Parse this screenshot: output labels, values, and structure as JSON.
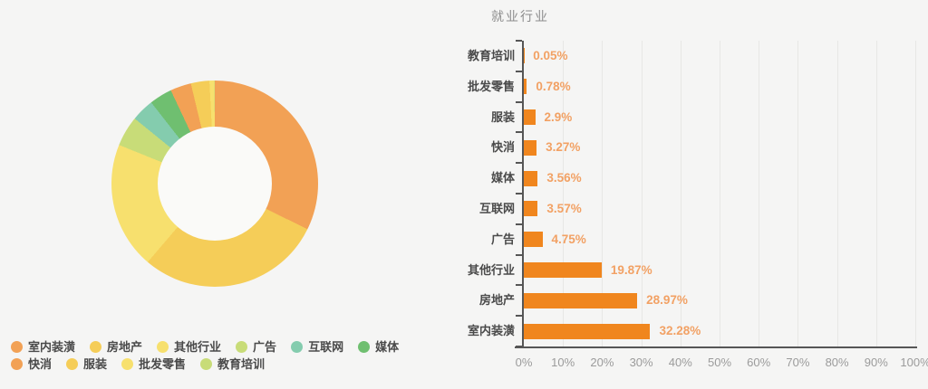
{
  "page": {
    "background_color": "#f5f5f4"
  },
  "chart_data": [
    {
      "type": "pie",
      "donut": true,
      "title": "",
      "start_angle": "top",
      "direction": "clockwise",
      "unit": "%",
      "labels": [
        "室内装潢",
        "房地产",
        "其他行业",
        "广告",
        "互联网",
        "媒体",
        "快消",
        "服装",
        "批发零售",
        "教育培训"
      ],
      "values": [
        32.28,
        28.97,
        19.87,
        4.75,
        3.57,
        3.56,
        3.27,
        2.9,
        0.78,
        0.05
      ],
      "colors": [
        "#f2a155",
        "#f5cd58",
        "#f7e06e",
        "#c8dc78",
        "#84ccae",
        "#6fbf70",
        "#f2a155",
        "#f5cd58",
        "#f7e06e",
        "#c8dc78"
      ],
      "legend_position": "bottom",
      "legend_rows": [
        [
          "室内装潢",
          "房地产",
          "其他行业",
          "广告",
          "互联网",
          "媒体"
        ],
        [
          "快消",
          "服装",
          "批发零售",
          "教育培训"
        ]
      ]
    },
    {
      "type": "bar",
      "orientation": "horizontal",
      "title": "就业行业",
      "categories": [
        "教育培训",
        "批发零售",
        "服装",
        "快消",
        "媒体",
        "互联网",
        "广告",
        "其他行业",
        "房地产",
        "室内装潢"
      ],
      "values": [
        0.05,
        0.78,
        2.9,
        3.27,
        3.56,
        3.57,
        4.75,
        19.87,
        28.97,
        32.28
      ],
      "value_labels": [
        "0.05%",
        "0.78%",
        "2.9%",
        "3.27%",
        "3.56%",
        "3.57%",
        "4.75%",
        "19.87%",
        "28.97%",
        "32.28%"
      ],
      "x_tick_labels": [
        "0%",
        "10%",
        "20%",
        "30%",
        "40%",
        "50%",
        "60%",
        "70%",
        "80%",
        "90%",
        "100%"
      ],
      "xlim": [
        0,
        100
      ],
      "grid": true,
      "bar_color": "#f0861e",
      "value_label_color": "#f2a164",
      "axis_color": "#565656",
      "grid_color": "#e7e7e5",
      "tick_label_color": "#9b9b9b"
    }
  ]
}
